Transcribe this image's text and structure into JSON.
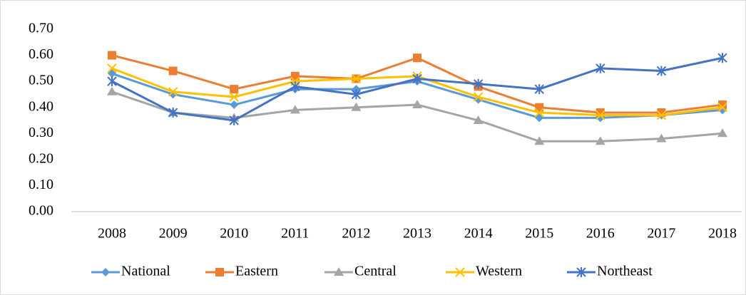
{
  "chart_data": {
    "type": "line",
    "categories": [
      "2008",
      "2009",
      "2010",
      "2011",
      "2012",
      "2013",
      "2014",
      "2015",
      "2016",
      "2017",
      "2018"
    ],
    "series": [
      {
        "name": "National",
        "color": "#5b9bd5",
        "marker": "diamond",
        "values": [
          0.53,
          0.45,
          0.41,
          0.47,
          0.47,
          0.5,
          0.43,
          0.36,
          0.36,
          0.37,
          0.39
        ]
      },
      {
        "name": "Eastern",
        "color": "#ed7d31",
        "marker": "square",
        "values": [
          0.6,
          0.54,
          0.47,
          0.52,
          0.51,
          0.59,
          0.48,
          0.4,
          0.38,
          0.38,
          0.41
        ]
      },
      {
        "name": "Central",
        "color": "#a5a5a5",
        "marker": "triangle",
        "values": [
          0.46,
          0.38,
          0.36,
          0.39,
          0.4,
          0.41,
          0.35,
          0.27,
          0.27,
          0.28,
          0.3
        ]
      },
      {
        "name": "Western",
        "color": "#ffc000",
        "marker": "x",
        "values": [
          0.55,
          0.46,
          0.44,
          0.5,
          0.51,
          0.52,
          0.44,
          0.38,
          0.37,
          0.37,
          0.4
        ]
      },
      {
        "name": "Northeast",
        "color": "#4472c4",
        "marker": "star",
        "values": [
          0.5,
          0.38,
          0.35,
          0.48,
          0.45,
          0.51,
          0.49,
          0.47,
          0.55,
          0.54,
          0.59
        ]
      }
    ],
    "ylim": [
      0,
      0.7
    ],
    "yticks": [
      {
        "value": 0,
        "label": "0.00"
      },
      {
        "value": 0.1,
        "label": "0.10"
      },
      {
        "value": 0.2,
        "label": "0.20"
      },
      {
        "value": 0.3,
        "label": "0.30"
      },
      {
        "value": 0.4,
        "label": "0.40"
      },
      {
        "value": 0.5,
        "label": "0.50"
      },
      {
        "value": 0.6,
        "label": "0.60"
      },
      {
        "value": 0.7,
        "label": "0.70"
      }
    ],
    "grid": false,
    "legend": "bottom"
  }
}
